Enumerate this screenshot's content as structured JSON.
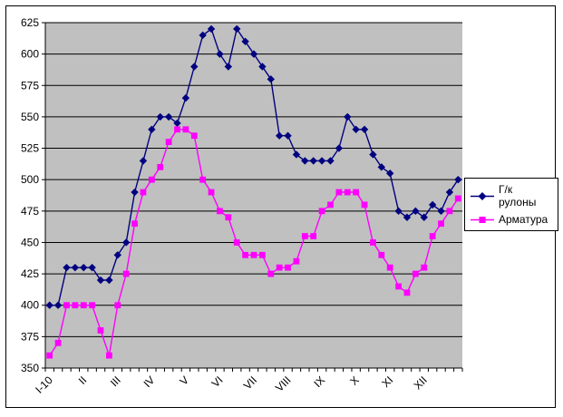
{
  "window": {
    "background": "#FFFFFF",
    "border_color": "#000000",
    "text_color": "#000000"
  },
  "chart_data": {
    "type": "line",
    "title": "",
    "n_points": 49,
    "x_labels": [
      "I-10",
      "II",
      "III",
      "IV",
      "V",
      "VI",
      "VII",
      "VIII",
      "IX",
      "X",
      "XI",
      "XII"
    ],
    "x_label_every_n_points": 4,
    "ylim": [
      350,
      625
    ],
    "y_tick_step": 25,
    "y_tick_labels": [
      "350",
      "375",
      "400",
      "425",
      "450",
      "475",
      "500",
      "525",
      "550",
      "575",
      "600",
      "625"
    ],
    "grid": "horizontal",
    "plot_bg": "#C0C0C0",
    "axis_color": "#000000",
    "legend_position": "right",
    "series": [
      {
        "name": "Г/к рулоны",
        "color": "#000080",
        "marker": "diamond",
        "values": [
          400,
          400,
          430,
          430,
          430,
          430,
          420,
          420,
          440,
          450,
          490,
          515,
          540,
          550,
          550,
          545,
          565,
          590,
          615,
          620,
          600,
          590,
          620,
          610,
          600,
          590,
          580,
          535,
          535,
          520,
          515,
          515,
          515,
          515,
          525,
          550,
          540,
          540,
          520,
          510,
          505,
          475,
          470,
          475,
          470,
          480,
          475,
          490,
          500
        ]
      },
      {
        "name": "Арматура",
        "color": "#FF00FF",
        "marker": "square",
        "values": [
          360,
          370,
          400,
          400,
          400,
          400,
          380,
          360,
          400,
          425,
          465,
          490,
          500,
          510,
          530,
          540,
          540,
          535,
          500,
          490,
          475,
          470,
          450,
          440,
          440,
          440,
          425,
          430,
          430,
          435,
          455,
          455,
          475,
          480,
          490,
          490,
          490,
          480,
          450,
          440,
          430,
          415,
          410,
          425,
          430,
          455,
          465,
          475,
          485
        ]
      }
    ]
  }
}
